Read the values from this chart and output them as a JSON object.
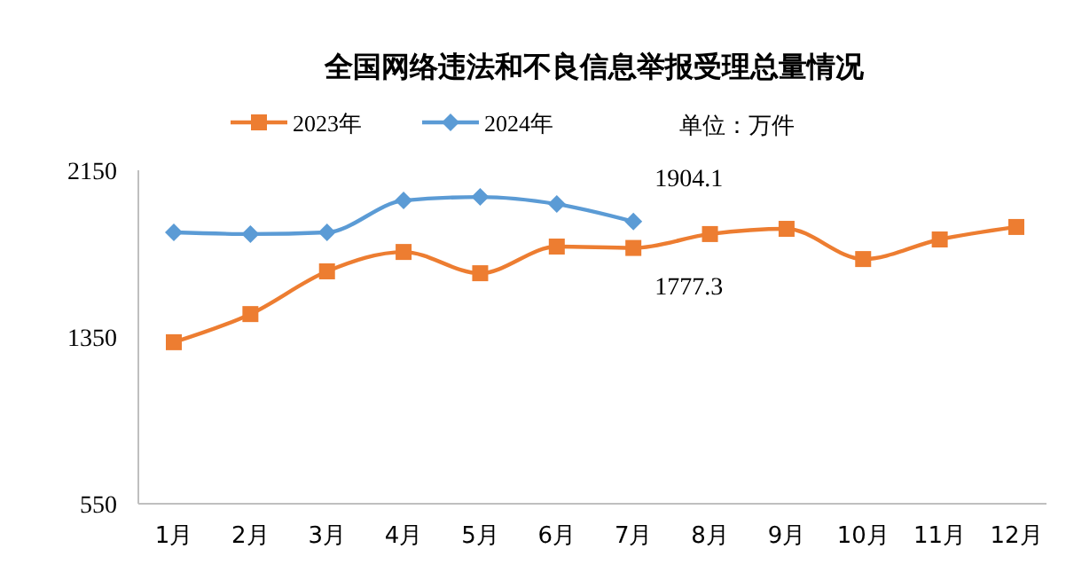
{
  "chart_data": {
    "type": "line",
    "title": "全国网络违法和不良信息举报受理总量情况",
    "categories": [
      "1月",
      "2月",
      "3月",
      "4月",
      "5月",
      "6月",
      "7月",
      "8月",
      "9月",
      "10月",
      "11月",
      "12月"
    ],
    "series": [
      {
        "name": "2023年",
        "color": "#ed7d31",
        "marker": "square",
        "values": [
          1325,
          1460,
          1665,
          1758,
          1656,
          1784,
          1777.3,
          1844,
          1869,
          1724,
          1818,
          1878
        ]
      },
      {
        "name": "2024年",
        "color": "#5b9bd5",
        "marker": "diamond",
        "values": [
          1852,
          1844,
          1852,
          2005,
          2022,
          1988,
          1904.1,
          null,
          null,
          null,
          null,
          null
        ]
      }
    ],
    "ylim": [
      550,
      2150
    ],
    "yticks": [
      550,
      1350,
      2150
    ],
    "grid": false,
    "legend": "top",
    "annotations": [
      {
        "text": "1904.1",
        "x": "7月",
        "y": 1904.1
      },
      {
        "text": "1777.3",
        "x": "7月",
        "y": 1777.3
      },
      "单位：万件"
    ]
  }
}
